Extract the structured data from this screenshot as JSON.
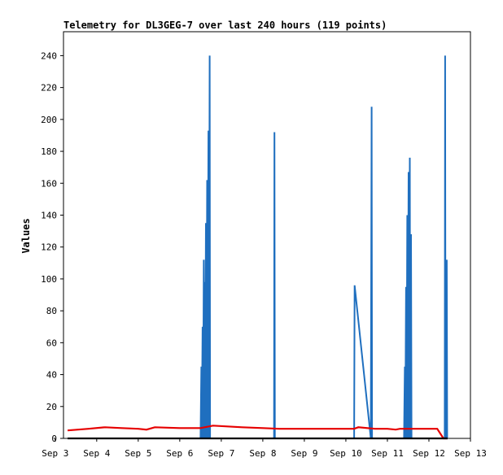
{
  "chart_data": {
    "type": "line",
    "title": "Telemetry for DL3GEG-7 over last 240 hours (119 points)",
    "ylabel": "Values",
    "xlabel": "",
    "ylim": [
      0,
      255
    ],
    "xlim": [
      3.2,
      13.0
    ],
    "grid": false,
    "x_tick_values": [
      3,
      4,
      5,
      6,
      7,
      8,
      9,
      10,
      11,
      12,
      13
    ],
    "x_tick_labels": [
      "Sep 3",
      "Sep 4",
      "Sep 5",
      "Sep 6",
      "Sep 7",
      "Sep 8",
      "Sep 9",
      "Sep 10",
      "Sep 11",
      "Sep 12",
      "Sep 13"
    ],
    "y_tick_values": [
      0,
      20,
      40,
      60,
      80,
      100,
      120,
      140,
      160,
      180,
      200,
      220,
      240
    ],
    "y_tick_labels": [
      "0",
      "20",
      "40",
      "60",
      "80",
      "100",
      "120",
      "140",
      "160",
      "180",
      "200",
      "220",
      "240"
    ],
    "colors": {
      "blue": "#1f6fbf",
      "red": "#e60000",
      "black": "#000000"
    },
    "series": [
      {
        "color": "#1f6fbf",
        "points": [
          [
            6.5,
            0
          ],
          [
            6.52,
            45
          ],
          [
            6.53,
            0
          ],
          [
            6.55,
            70
          ],
          [
            6.56,
            0
          ],
          [
            6.58,
            112
          ],
          [
            6.59,
            0
          ],
          [
            6.6,
            98
          ],
          [
            6.61,
            0
          ],
          [
            6.63,
            135
          ],
          [
            6.64,
            0
          ],
          [
            6.66,
            162
          ],
          [
            6.67,
            0
          ],
          [
            6.69,
            193
          ],
          [
            6.7,
            0
          ],
          [
            6.72,
            240
          ],
          [
            6.73,
            0
          ],
          [
            8.27,
            0
          ],
          [
            8.28,
            192
          ],
          [
            8.29,
            0
          ],
          [
            10.2,
            0
          ],
          [
            10.21,
            96
          ],
          [
            10.6,
            0
          ],
          [
            10.62,
            208
          ],
          [
            10.63,
            0
          ],
          [
            11.4,
            0
          ],
          [
            11.42,
            45
          ],
          [
            11.43,
            0
          ],
          [
            11.45,
            95
          ],
          [
            11.46,
            0
          ],
          [
            11.48,
            140
          ],
          [
            11.49,
            0
          ],
          [
            11.51,
            167
          ],
          [
            11.52,
            0
          ],
          [
            11.54,
            176
          ],
          [
            11.55,
            0
          ],
          [
            11.57,
            128
          ],
          [
            11.58,
            0
          ],
          [
            12.38,
            0
          ],
          [
            12.39,
            240
          ],
          [
            12.4,
            0
          ],
          [
            12.43,
            112
          ],
          [
            12.44,
            0
          ]
        ]
      },
      {
        "color": "#e60000",
        "points": [
          [
            3.3,
            5
          ],
          [
            3.8,
            6
          ],
          [
            4.2,
            7
          ],
          [
            4.6,
            6.5
          ],
          [
            5.0,
            6
          ],
          [
            5.2,
            5.5
          ],
          [
            5.4,
            7
          ],
          [
            6.0,
            6.5
          ],
          [
            6.5,
            6.5
          ],
          [
            6.8,
            8
          ],
          [
            7.5,
            7
          ],
          [
            8.0,
            6.5
          ],
          [
            8.4,
            6
          ],
          [
            9.0,
            6
          ],
          [
            9.6,
            6
          ],
          [
            10.2,
            6
          ],
          [
            10.3,
            7
          ],
          [
            10.7,
            6
          ],
          [
            11.0,
            6
          ],
          [
            11.2,
            5.5
          ],
          [
            11.3,
            6
          ],
          [
            11.6,
            6
          ],
          [
            12.0,
            6
          ],
          [
            12.2,
            6
          ],
          [
            12.35,
            0
          ],
          [
            12.45,
            0
          ]
        ]
      },
      {
        "color": "#000000",
        "points": [
          [
            3.3,
            0
          ],
          [
            12.45,
            0
          ]
        ]
      }
    ]
  }
}
